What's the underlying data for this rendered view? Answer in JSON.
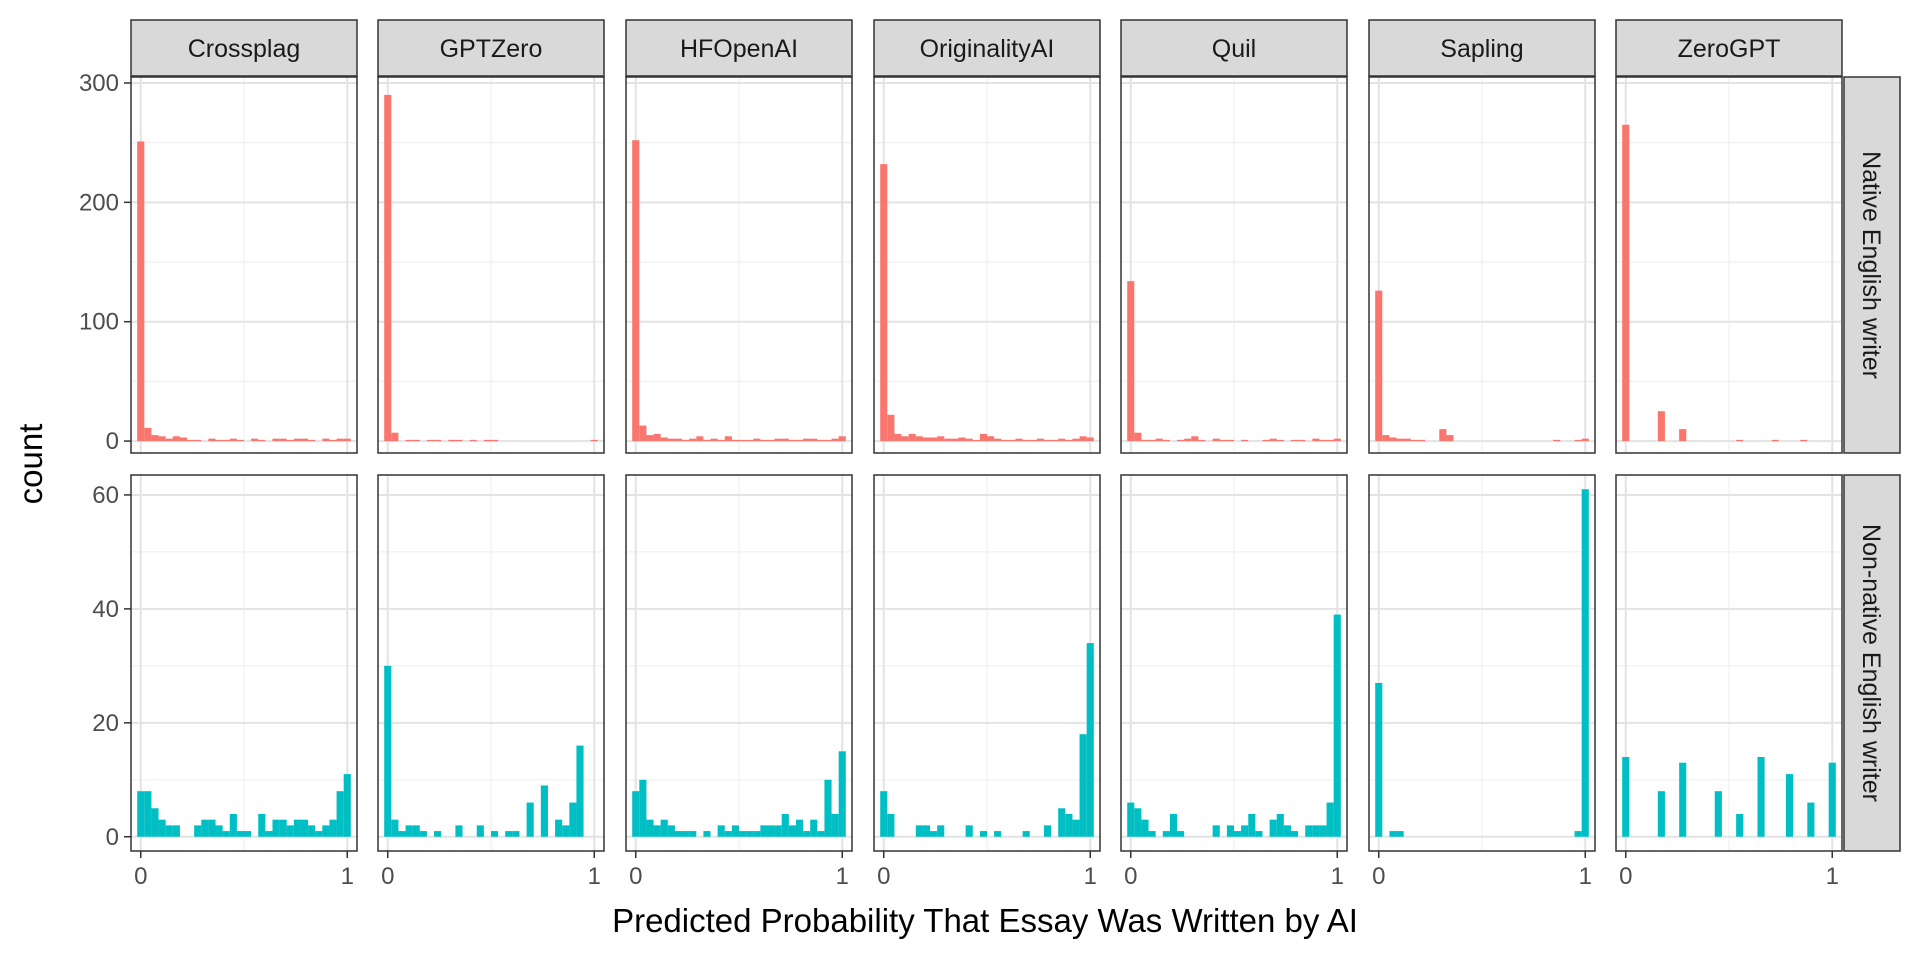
{
  "chart_data": {
    "type": "bar",
    "xlabel": "Predicted Probability That Essay Was Written by AI",
    "ylabel": "count",
    "bins": 30,
    "xlim": [
      0,
      1
    ],
    "x_ticks": [
      "0",
      "1"
    ],
    "grid": true,
    "facet_columns": [
      "Crossplag",
      "GPTZero",
      "HFOpenAI",
      "OriginalityAI",
      "Quil",
      "Sapling",
      "ZeroGPT"
    ],
    "facet_rows": [
      {
        "name": "Native English writer",
        "color": "#F8766D",
        "ylim": [
          -10,
          305
        ],
        "y_ticks": [
          0,
          100,
          200,
          300
        ],
        "panels": [
          {
            "detector": "Crossplag",
            "counts": [
              251,
              11,
              5,
              4,
              2,
              4,
              3,
              1,
              1,
              0,
              2,
              1,
              1,
              2,
              1,
              0,
              2,
              1,
              0,
              2,
              2,
              1,
              2,
              2,
              1,
              0,
              2,
              1,
              2,
              2
            ]
          },
          {
            "detector": "GPTZero",
            "counts": [
              290,
              7,
              0,
              1,
              1,
              0,
              1,
              1,
              0,
              1,
              1,
              0,
              1,
              0,
              1,
              1,
              0,
              0,
              0,
              0,
              0,
              0,
              0,
              0,
              0,
              0,
              0,
              0,
              0,
              1
            ]
          },
          {
            "detector": "HFOpenAI",
            "counts": [
              252,
              13,
              5,
              6,
              3,
              2,
              2,
              1,
              2,
              4,
              1,
              2,
              1,
              4,
              1,
              1,
              1,
              2,
              1,
              1,
              2,
              2,
              1,
              1,
              2,
              2,
              1,
              1,
              2,
              4
            ]
          },
          {
            "detector": "OriginalityAI",
            "counts": [
              232,
              22,
              6,
              4,
              6,
              4,
              3,
              3,
              4,
              2,
              2,
              3,
              2,
              1,
              6,
              4,
              2,
              1,
              1,
              2,
              1,
              1,
              2,
              1,
              1,
              2,
              1,
              2,
              4,
              3
            ]
          },
          {
            "detector": "Quil",
            "counts": [
              134,
              7,
              1,
              1,
              2,
              1,
              0,
              1,
              2,
              4,
              1,
              0,
              2,
              1,
              1,
              0,
              1,
              0,
              0,
              1,
              2,
              1,
              0,
              1,
              1,
              0,
              2,
              1,
              1,
              2
            ]
          },
          {
            "detector": "Sapling",
            "counts": [
              126,
              5,
              3,
              2,
              2,
              1,
              1,
              0,
              0,
              10,
              5,
              0,
              0,
              0,
              0,
              0,
              0,
              0,
              0,
              0,
              0,
              0,
              0,
              0,
              0,
              1,
              0,
              0,
              1,
              2
            ]
          },
          {
            "detector": "ZeroGPT",
            "counts": [
              265,
              0,
              0,
              0,
              0,
              25,
              0,
              0,
              10,
              0,
              0,
              0,
              0,
              0,
              0,
              0,
              1,
              0,
              0,
              0,
              0,
              1,
              0,
              0,
              0,
              1,
              0,
              0,
              0,
              0
            ]
          }
        ]
      },
      {
        "name": "Non-native English writer",
        "color": "#00BFC4",
        "ylim": [
          -2.5,
          63.5
        ],
        "y_ticks": [
          0,
          20,
          40,
          60
        ],
        "panels": [
          {
            "detector": "Crossplag",
            "counts": [
              8,
              8,
              5,
              3,
              2,
              2,
              0,
              0,
              2,
              3,
              3,
              2,
              1,
              4,
              1,
              1,
              0,
              4,
              1,
              3,
              3,
              2,
              3,
              3,
              2,
              1,
              2,
              3,
              8,
              11
            ]
          },
          {
            "detector": "GPTZero",
            "counts": [
              30,
              3,
              1,
              2,
              2,
              1,
              0,
              1,
              0,
              0,
              2,
              0,
              0,
              2,
              0,
              1,
              0,
              1,
              1,
              0,
              6,
              0,
              9,
              0,
              3,
              2,
              6,
              16,
              0,
              0
            ]
          },
          {
            "detector": "HFOpenAI",
            "counts": [
              8,
              10,
              3,
              2,
              3,
              2,
              1,
              1,
              1,
              0,
              1,
              0,
              2,
              1,
              2,
              1,
              1,
              1,
              2,
              2,
              2,
              4,
              2,
              3,
              1,
              3,
              1,
              10,
              4,
              15
            ]
          },
          {
            "detector": "OriginalityAI",
            "counts": [
              8,
              4,
              0,
              0,
              0,
              2,
              2,
              1,
              2,
              0,
              0,
              0,
              2,
              0,
              1,
              0,
              1,
              0,
              0,
              0,
              1,
              0,
              0,
              2,
              0,
              5,
              4,
              3,
              18,
              34
            ]
          },
          {
            "detector": "Quil",
            "counts": [
              6,
              5,
              3,
              1,
              0,
              1,
              4,
              1,
              0,
              0,
              0,
              0,
              2,
              0,
              2,
              1,
              2,
              4,
              1,
              0,
              3,
              4,
              2,
              1,
              0,
              2,
              2,
              2,
              6,
              39
            ]
          },
          {
            "detector": "Sapling",
            "counts": [
              27,
              0,
              1,
              1,
              0,
              0,
              0,
              0,
              0,
              0,
              0,
              0,
              0,
              0,
              0,
              0,
              0,
              0,
              0,
              0,
              0,
              0,
              0,
              0,
              0,
              0,
              0,
              0,
              1,
              61
            ]
          },
          {
            "detector": "ZeroGPT",
            "counts": [
              14,
              0,
              0,
              0,
              0,
              8,
              0,
              0,
              13,
              0,
              0,
              0,
              0,
              8,
              0,
              0,
              4,
              0,
              0,
              14,
              0,
              0,
              0,
              11,
              0,
              0,
              6,
              0,
              0,
              13
            ]
          }
        ]
      }
    ]
  }
}
